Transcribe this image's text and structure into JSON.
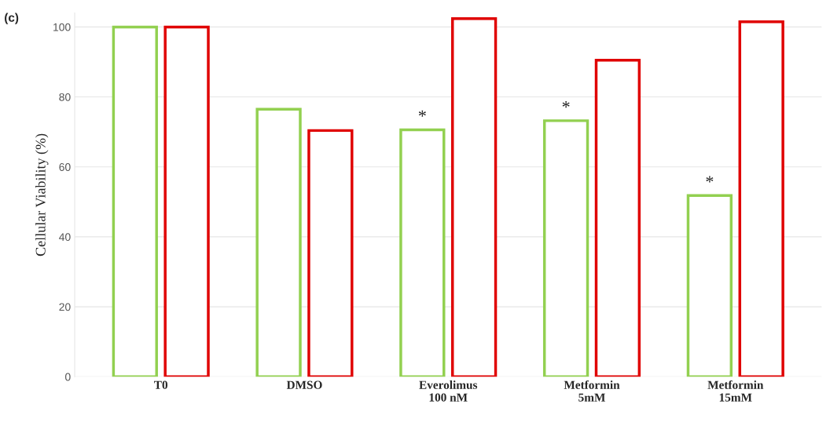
{
  "chart_data": {
    "type": "bar",
    "ylabel": "Cellular Viability (%)",
    "categories": [
      "T0",
      "DMSO",
      "Everolimus\n100 nM",
      "Metformin\n5mM",
      "Metformin\n15mM"
    ],
    "series": [
      {
        "color": "#92d050",
        "values": [
          100,
          76.5,
          70.6,
          73.2,
          51.8
        ]
      },
      {
        "color": "#e00000",
        "values": [
          100,
          70.4,
          102.4,
          90.5,
          101.5
        ]
      }
    ],
    "ylim": [
      0,
      104
    ],
    "yticks": [
      0,
      20,
      40,
      60,
      80,
      100
    ],
    "grid": "y",
    "legend": false,
    "annotations": [
      "(c)",
      "*",
      "*",
      "*"
    ]
  }
}
